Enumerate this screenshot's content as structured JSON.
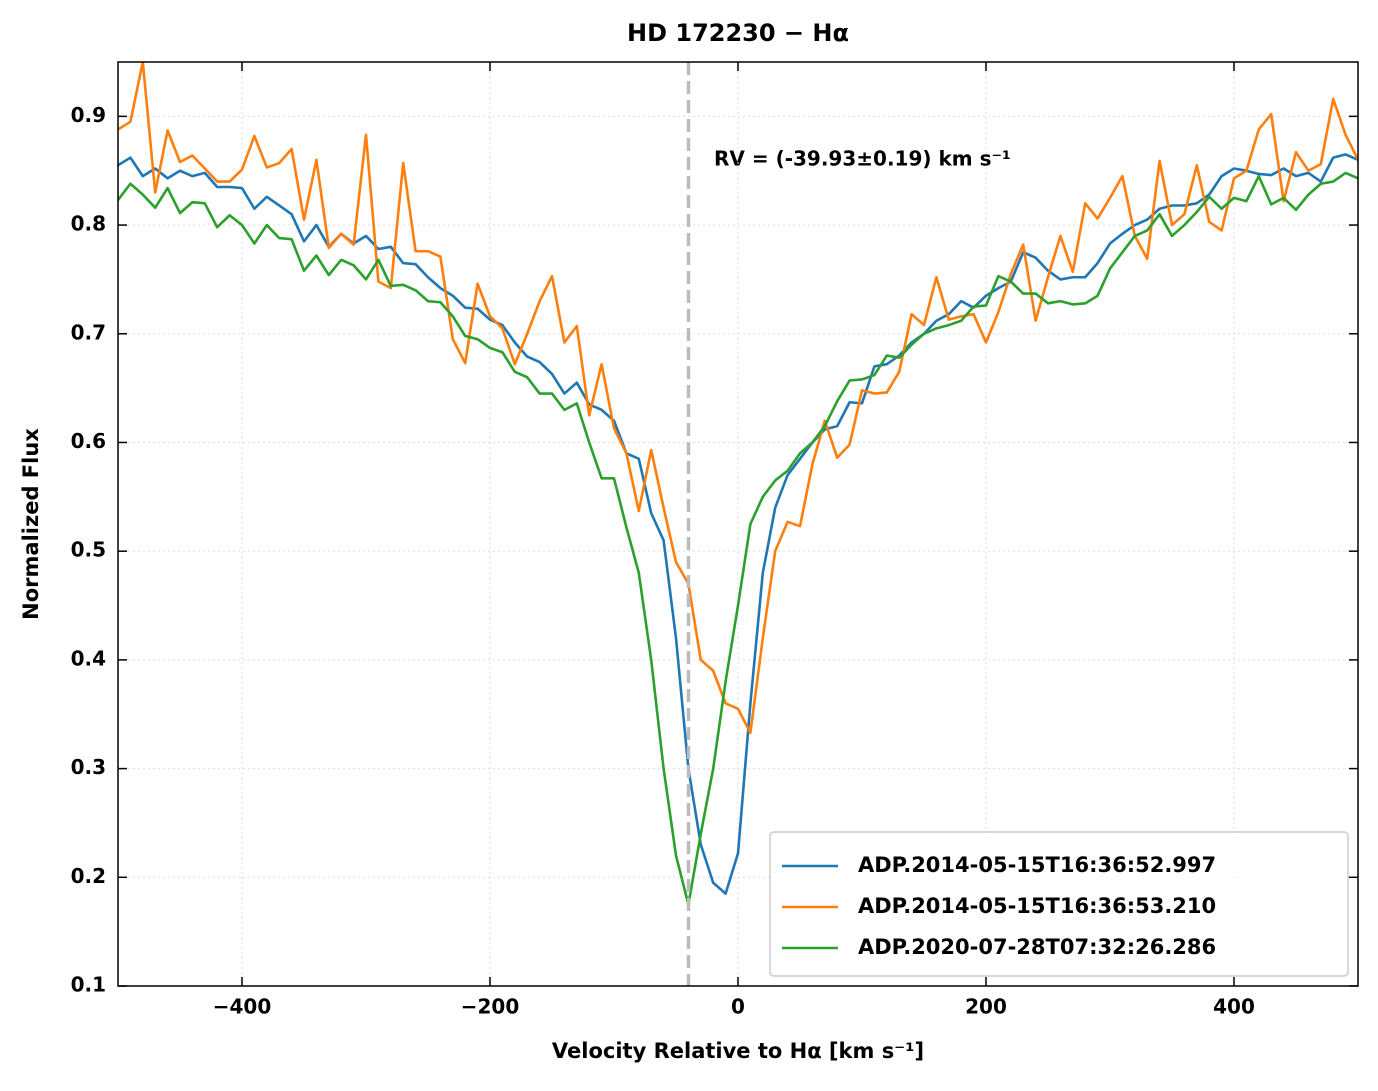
{
  "chart_data": {
    "type": "line",
    "title": "HD 172230 − Hα",
    "x_label": "Velocity Relative to Hα [km s⁻¹]",
    "y_label": "Normalized Flux",
    "annotation": "RV = (-39.93±0.19) km s⁻¹",
    "rv_line": -39.93,
    "rv_line_color": "#bbbbbb",
    "xlim": [
      -500,
      500
    ],
    "ylim": [
      0.1,
      0.95
    ],
    "xticks": [
      {
        "value": -400,
        "label": "−400"
      },
      {
        "value": -200,
        "label": "−200"
      },
      0,
      200,
      400
    ],
    "yticks": [
      0.1,
      0.2,
      0.3,
      0.4,
      0.5,
      0.6,
      0.7,
      0.8,
      0.9
    ],
    "grid": true,
    "legend": "lower right",
    "x": [
      -500,
      -490,
      -480,
      -470,
      -460,
      -450,
      -440,
      -430,
      -420,
      -410,
      -400,
      -390,
      -380,
      -370,
      -360,
      -350,
      -340,
      -330,
      -320,
      -310,
      -300,
      -290,
      -280,
      -270,
      -260,
      -250,
      -240,
      -230,
      -220,
      -210,
      -200,
      -190,
      -180,
      -170,
      -160,
      -150,
      -140,
      -130,
      -120,
      -110,
      -100,
      -90,
      -80,
      -70,
      -60,
      -50,
      -40,
      -30,
      -20,
      -10,
      0,
      10,
      20,
      30,
      40,
      50,
      60,
      70,
      80,
      90,
      100,
      110,
      120,
      130,
      140,
      150,
      160,
      170,
      180,
      190,
      200,
      210,
      220,
      230,
      240,
      250,
      260,
      270,
      280,
      290,
      300,
      310,
      320,
      330,
      340,
      350,
      360,
      370,
      380,
      390,
      400,
      410,
      420,
      430,
      440,
      450,
      460,
      470,
      480,
      490,
      500
    ],
    "series": [
      {
        "name": "ADP.2014-05-15T16:36:52.997",
        "color": "#1f77b4",
        "values": [
          0.855,
          0.862,
          0.845,
          0.852,
          0.843,
          0.85,
          0.845,
          0.848,
          0.835,
          0.835,
          0.834,
          0.815,
          0.826,
          0.818,
          0.81,
          0.785,
          0.8,
          0.78,
          0.792,
          0.783,
          0.79,
          0.778,
          0.78,
          0.765,
          0.764,
          0.752,
          0.742,
          0.735,
          0.724,
          0.723,
          0.713,
          0.708,
          0.692,
          0.679,
          0.674,
          0.663,
          0.645,
          0.655,
          0.635,
          0.63,
          0.62,
          0.59,
          0.585,
          0.535,
          0.51,
          0.42,
          0.3,
          0.23,
          0.195,
          0.185,
          0.222,
          0.36,
          0.48,
          0.54,
          0.57,
          0.585,
          0.6,
          0.612,
          0.615,
          0.637,
          0.636,
          0.67,
          0.672,
          0.68,
          0.692,
          0.7,
          0.712,
          0.718,
          0.73,
          0.724,
          0.735,
          0.742,
          0.748,
          0.775,
          0.77,
          0.758,
          0.75,
          0.752,
          0.752,
          0.765,
          0.783,
          0.792,
          0.8,
          0.805,
          0.815,
          0.818,
          0.818,
          0.82,
          0.828,
          0.845,
          0.852,
          0.85,
          0.847,
          0.846,
          0.852,
          0.845,
          0.848,
          0.84,
          0.862,
          0.865,
          0.86
        ]
      },
      {
        "name": "ADP.2014-05-15T16:36:53.210",
        "color": "#ff7f0e",
        "values": [
          0.888,
          0.895,
          0.95,
          0.83,
          0.887,
          0.858,
          0.864,
          0.852,
          0.84,
          0.84,
          0.851,
          0.882,
          0.853,
          0.857,
          0.87,
          0.805,
          0.86,
          0.779,
          0.792,
          0.782,
          0.883,
          0.748,
          0.742,
          0.857,
          0.776,
          0.776,
          0.771,
          0.695,
          0.673,
          0.746,
          0.716,
          0.705,
          0.672,
          0.7,
          0.73,
          0.753,
          0.692,
          0.707,
          0.625,
          0.672,
          0.613,
          0.59,
          0.537,
          0.593,
          0.54,
          0.49,
          0.47,
          0.4,
          0.39,
          0.36,
          0.355,
          0.333,
          0.42,
          0.5,
          0.527,
          0.523,
          0.58,
          0.62,
          0.586,
          0.598,
          0.648,
          0.645,
          0.646,
          0.665,
          0.718,
          0.708,
          0.752,
          0.713,
          0.716,
          0.718,
          0.692,
          0.72,
          0.755,
          0.782,
          0.712,
          0.752,
          0.79,
          0.757,
          0.82,
          0.806,
          0.825,
          0.845,
          0.79,
          0.769,
          0.859,
          0.8,
          0.81,
          0.855,
          0.803,
          0.795,
          0.843,
          0.85,
          0.888,
          0.902,
          0.822,
          0.867,
          0.85,
          0.856,
          0.916,
          0.883,
          0.86
        ]
      },
      {
        "name": "ADP.2020-07-28T07:32:26.286",
        "color": "#2ca02c",
        "values": [
          0.823,
          0.838,
          0.828,
          0.816,
          0.834,
          0.811,
          0.821,
          0.82,
          0.798,
          0.809,
          0.8,
          0.783,
          0.8,
          0.788,
          0.787,
          0.758,
          0.772,
          0.754,
          0.768,
          0.763,
          0.75,
          0.768,
          0.744,
          0.745,
          0.74,
          0.73,
          0.729,
          0.716,
          0.698,
          0.695,
          0.687,
          0.683,
          0.665,
          0.66,
          0.645,
          0.645,
          0.63,
          0.636,
          0.6,
          0.567,
          0.567,
          0.522,
          0.48,
          0.4,
          0.3,
          0.22,
          0.175,
          0.24,
          0.3,
          0.38,
          0.45,
          0.525,
          0.55,
          0.565,
          0.574,
          0.59,
          0.6,
          0.615,
          0.638,
          0.657,
          0.658,
          0.662,
          0.68,
          0.678,
          0.69,
          0.7,
          0.705,
          0.708,
          0.712,
          0.725,
          0.726,
          0.753,
          0.748,
          0.737,
          0.737,
          0.728,
          0.73,
          0.727,
          0.728,
          0.735,
          0.76,
          0.775,
          0.79,
          0.795,
          0.81,
          0.79,
          0.8,
          0.812,
          0.826,
          0.815,
          0.825,
          0.822,
          0.845,
          0.819,
          0.825,
          0.814,
          0.828,
          0.838,
          0.84,
          0.848,
          0.843
        ]
      }
    ]
  }
}
